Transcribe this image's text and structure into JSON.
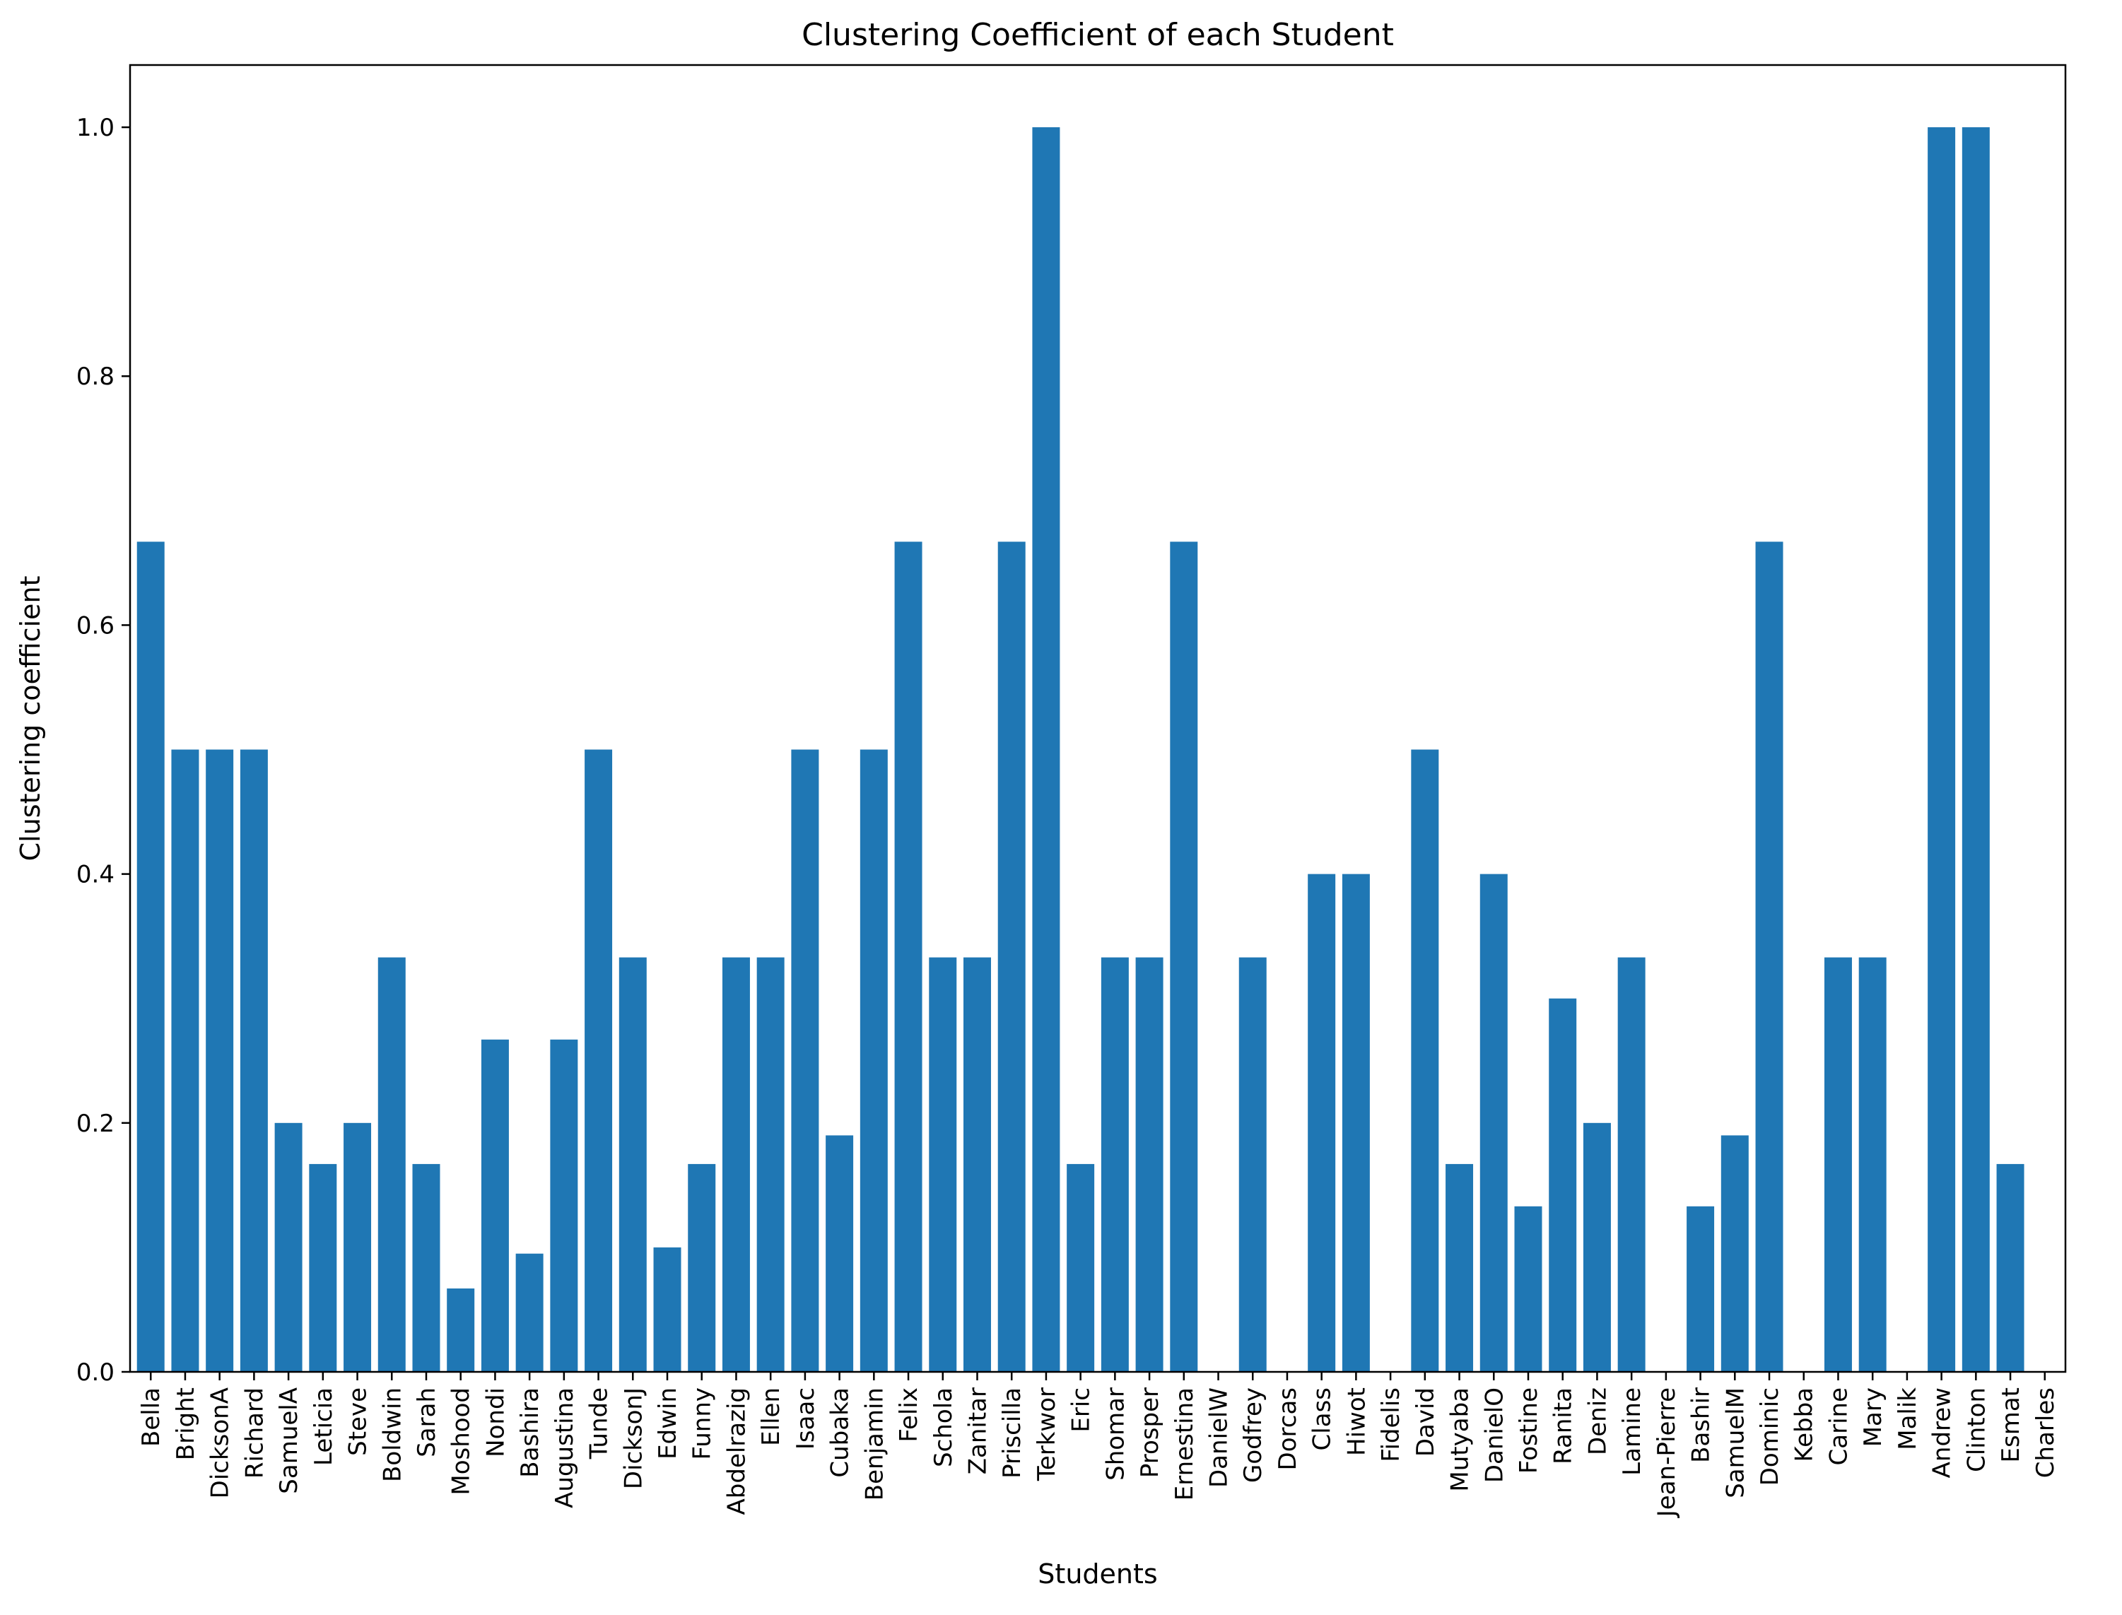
{
  "chart_data": {
    "type": "bar",
    "title": "Clustering Coefficient of each Student",
    "xlabel": "Students",
    "ylabel": "Clustering coefficient",
    "ylim": [
      0,
      1.05
    ],
    "yticks": [
      "0.0",
      "0.2",
      "0.4",
      "0.6",
      "0.8",
      "1.0"
    ],
    "grid": false,
    "legend": "none",
    "bar_color": "#1f77b4",
    "categories": [
      "Bella",
      "Bright",
      "DicksonA",
      "Richard",
      "SamuelA",
      "Leticia",
      "Steve",
      "Boldwin",
      "Sarah",
      "Moshood",
      "Nondi",
      "Bashira",
      "Augustina",
      "Tunde",
      "DicksonJ",
      "Edwin",
      "Funny",
      "Abdelrazig",
      "Ellen",
      "Isaac",
      "Cubaka",
      "Benjamin",
      "Felix",
      "Schola",
      "Zanitar",
      "Priscilla",
      "Terkwor",
      "Eric",
      "Shomar",
      "Prosper",
      "Ernestina",
      "DanielW",
      "Godfrey",
      "Dorcas",
      "Class",
      "Hiwot",
      "Fidelis",
      "David",
      "Mutyaba",
      "DanielO",
      "Fostine",
      "Ranita",
      "Deniz",
      "Lamine",
      "Jean-Pierre",
      "Bashir",
      "SamuelM",
      "Dominic",
      "Kebba",
      "Carine",
      "Mary",
      "Malik",
      "Andrew",
      "Clinton",
      "Esmat",
      "Charles"
    ],
    "values": [
      0.667,
      0.5,
      0.5,
      0.5,
      0.2,
      0.167,
      0.2,
      0.333,
      0.167,
      0.067,
      0.267,
      0.095,
      0.267,
      0.5,
      0.333,
      0.1,
      0.167,
      0.333,
      0.333,
      0.5,
      0.19,
      0.5,
      0.667,
      0.333,
      0.333,
      0.667,
      1.0,
      0.167,
      0.333,
      0.333,
      0.667,
      0,
      0.333,
      0,
      0.4,
      0.4,
      0,
      0.5,
      0.167,
      0.4,
      0.133,
      0.3,
      0.2,
      0.333,
      0,
      0.133,
      0.19,
      0.667,
      0,
      0.333,
      0.333,
      0,
      1.0,
      1.0,
      0.167,
      0
    ]
  }
}
